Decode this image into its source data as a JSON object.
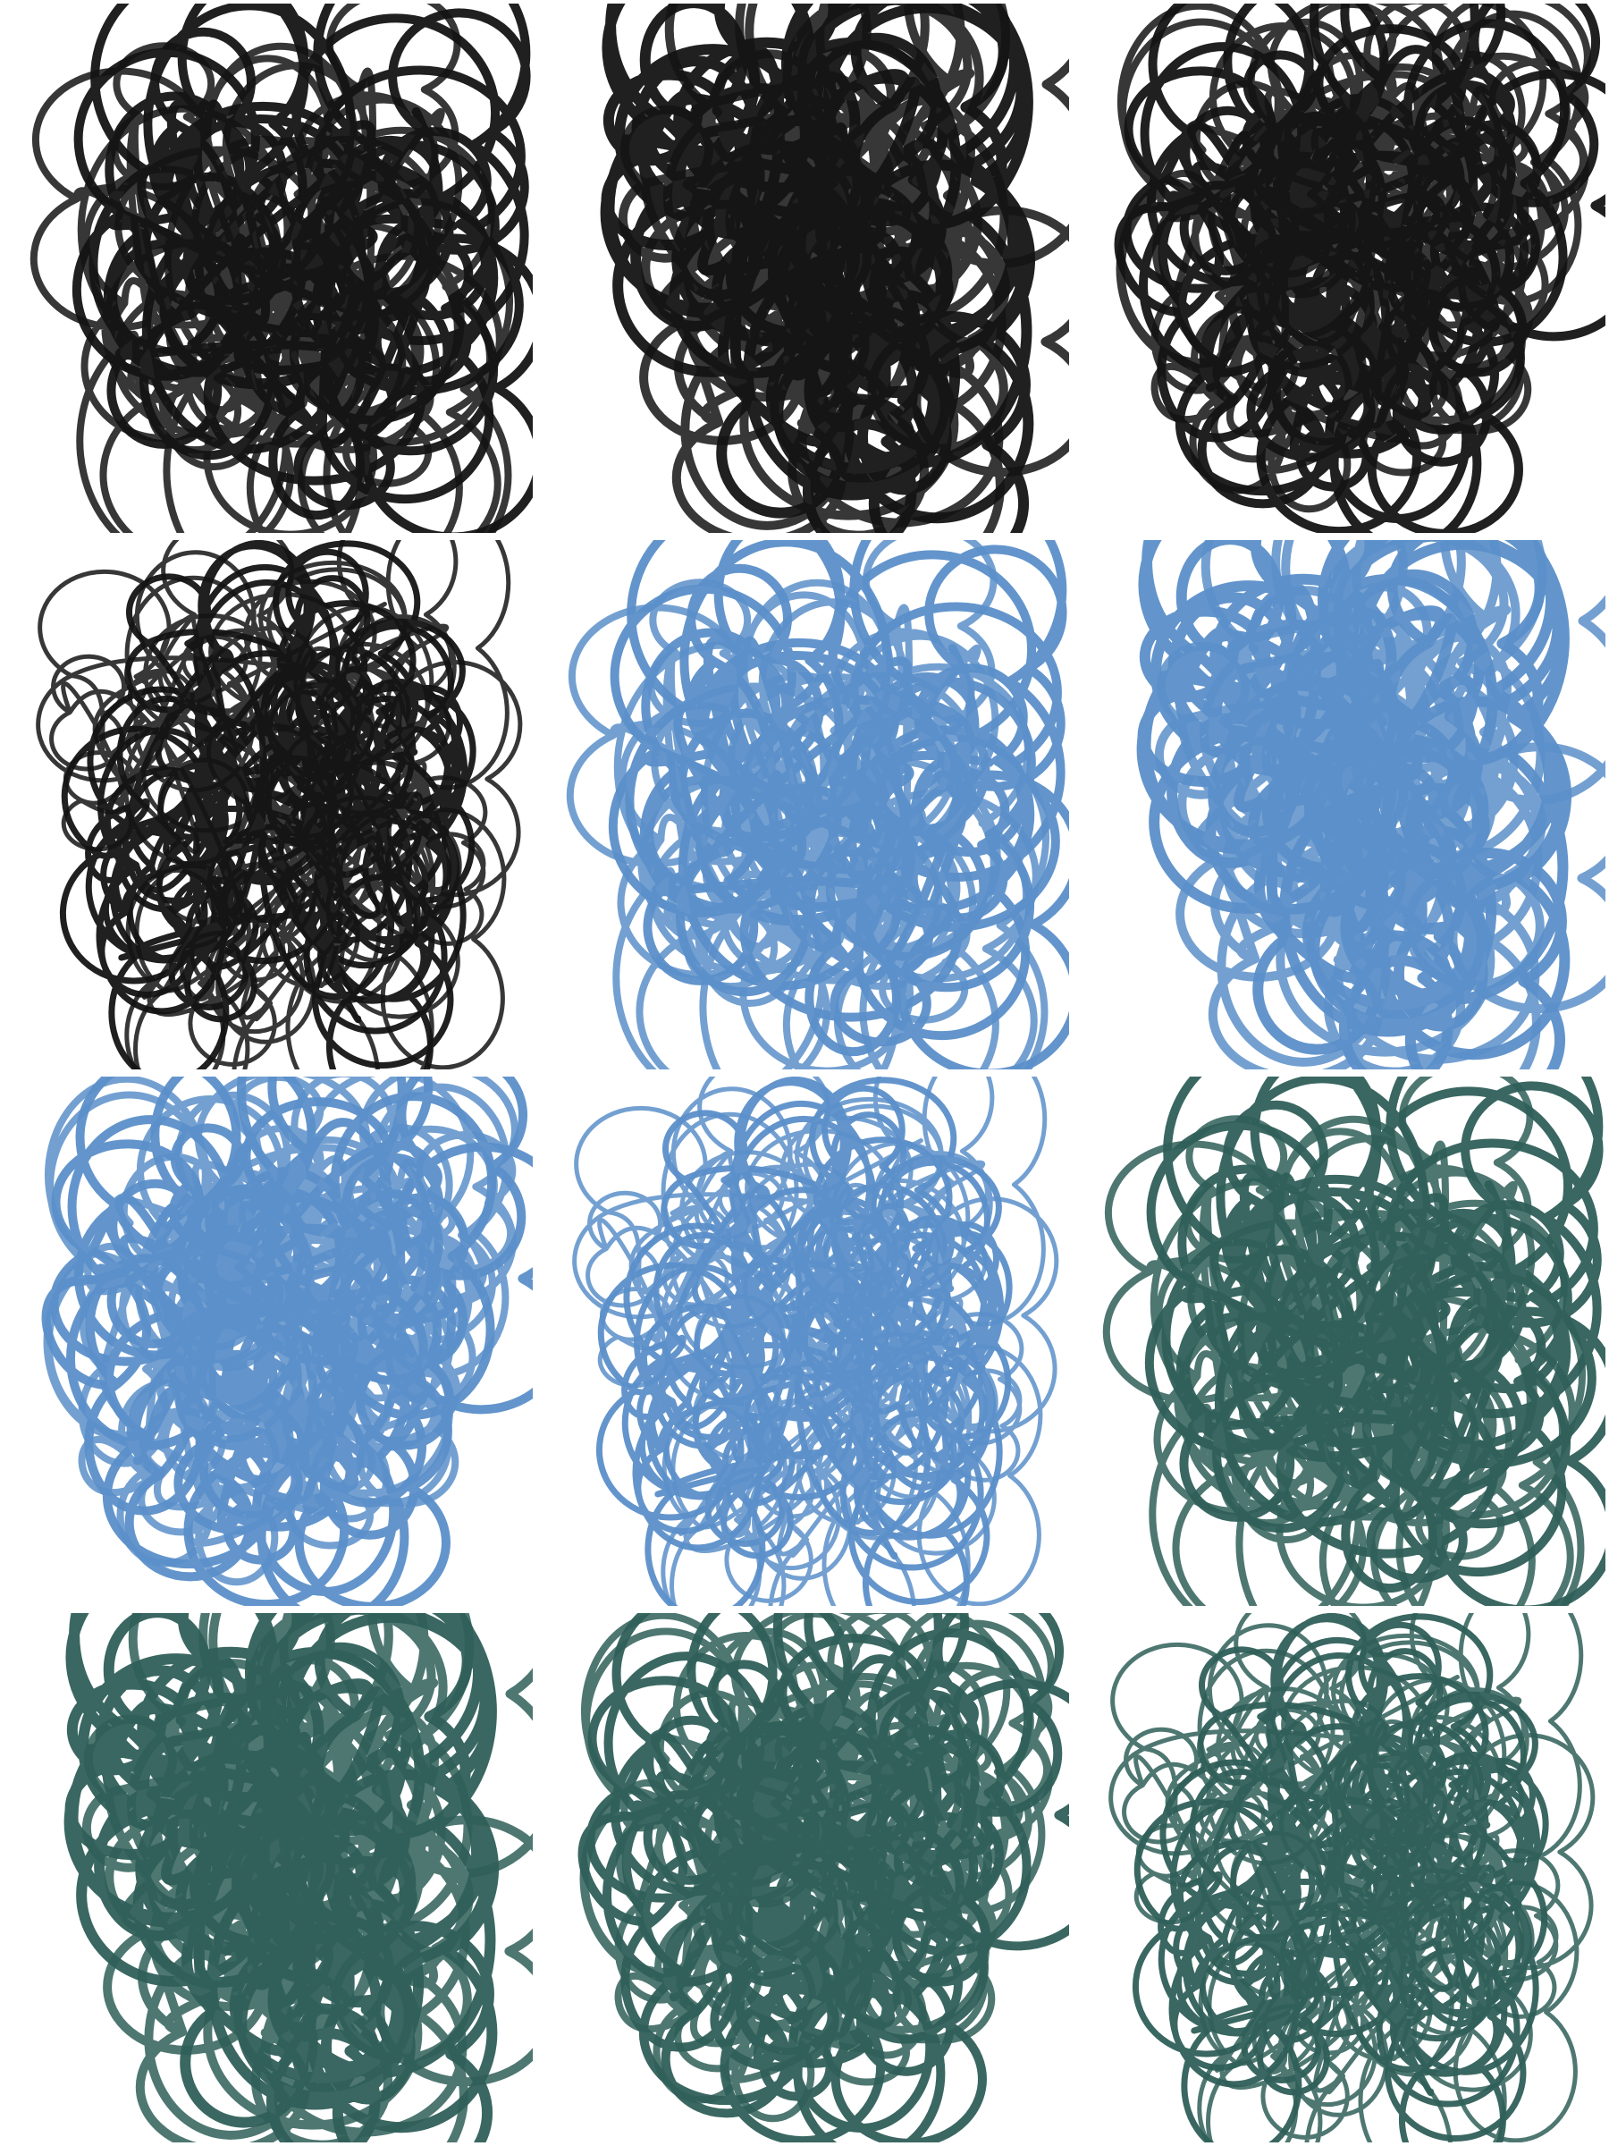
{
  "background": "#ffffff",
  "palette": {
    "black": "#141414",
    "blue": "#5b8fc9",
    "teal": "#2f5f58"
  },
  "tiles": [
    {
      "color": "black",
      "variant": "loopy",
      "weight": "bold",
      "seed": 11
    },
    {
      "color": "black",
      "variant": "tall",
      "weight": "heavy",
      "seed": 23
    },
    {
      "color": "black",
      "variant": "dense",
      "weight": "bold",
      "seed": 37
    },
    {
      "color": "black",
      "variant": "sparse",
      "weight": "medium",
      "seed": 41
    },
    {
      "color": "blue",
      "variant": "loopy",
      "weight": "bold",
      "seed": 11
    },
    {
      "color": "blue",
      "variant": "tall",
      "weight": "heavy",
      "seed": 23
    },
    {
      "color": "blue",
      "variant": "dense",
      "weight": "bold",
      "seed": 37
    },
    {
      "color": "blue",
      "variant": "sparse",
      "weight": "medium",
      "seed": 41
    },
    {
      "color": "teal",
      "variant": "loopy",
      "weight": "bold",
      "seed": 11
    },
    {
      "color": "teal",
      "variant": "tall",
      "weight": "heavy",
      "seed": 23
    },
    {
      "color": "teal",
      "variant": "dense",
      "weight": "bold",
      "seed": 37
    },
    {
      "color": "teal",
      "variant": "sparse",
      "weight": "medium",
      "seed": 41
    }
  ]
}
